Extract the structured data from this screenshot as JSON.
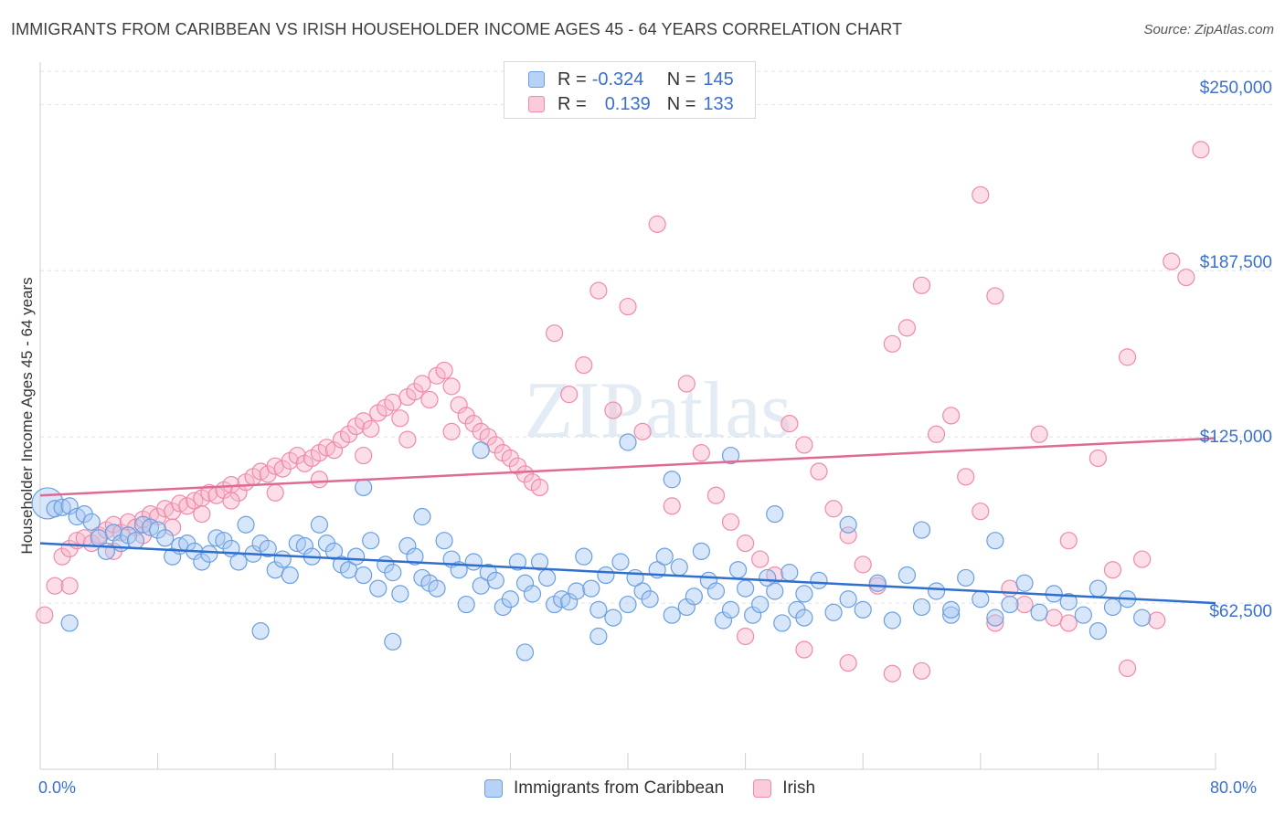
{
  "title": "IMMIGRANTS FROM CARIBBEAN VS IRISH HOUSEHOLDER INCOME AGES 45 - 64 YEARS CORRELATION CHART",
  "source": "Source: ZipAtlas.com",
  "watermark": "ZIPatlas",
  "legend_top": {
    "rows": [
      {
        "r_label": "R =",
        "r_value": "-0.324",
        "n_label": "N =",
        "n_value": "145"
      },
      {
        "r_label": "R =",
        "r_value": "0.139",
        "n_label": "N =",
        "n_value": "133"
      }
    ]
  },
  "chart_data": {
    "type": "scatter",
    "title": "IMMIGRANTS FROM CARIBBEAN VS IRISH HOUSEHOLDER INCOME AGES 45 - 64 YEARS CORRELATION CHART",
    "xlabel": "",
    "ylabel": "Householder Income Ages 45 - 64 years",
    "xlim": [
      0,
      80
    ],
    "ylim": [
      0,
      262500
    ],
    "x_tick_labels": [
      "0.0%",
      "80.0%"
    ],
    "y_ticks": [
      62500,
      125000,
      187500,
      250000
    ],
    "y_tick_labels": [
      "$62,500",
      "$125,000",
      "$187,500",
      "$250,000"
    ],
    "grid": true,
    "legend_position": "bottom",
    "colors": {
      "caribbean": "#6a9fe0",
      "irish": "#f08aaa",
      "caribbean_line": "#2f6fd0",
      "irish_line": "#e06a96"
    },
    "series": [
      {
        "name": "Immigrants from Caribbean",
        "r": -0.324,
        "n": 145,
        "trend": {
          "x": [
            0,
            80
          ],
          "y": [
            85000,
            62500
          ]
        },
        "points": [
          [
            0.5,
            100000
          ],
          [
            1,
            98000
          ],
          [
            1.5,
            98500
          ],
          [
            2,
            99000
          ],
          [
            2.5,
            95000
          ],
          [
            3,
            96000
          ],
          [
            3.5,
            93000
          ],
          [
            4,
            87000
          ],
          [
            4.5,
            82000
          ],
          [
            5,
            89000
          ],
          [
            5.5,
            85000
          ],
          [
            6,
            88000
          ],
          [
            6.5,
            86000
          ],
          [
            7,
            92000
          ],
          [
            7.5,
            91000
          ],
          [
            8,
            90000
          ],
          [
            8.5,
            87000
          ],
          [
            9,
            80000
          ],
          [
            9.5,
            84000
          ],
          [
            10,
            85000
          ],
          [
            10.5,
            82000
          ],
          [
            11,
            78000
          ],
          [
            11.5,
            81000
          ],
          [
            12,
            87000
          ],
          [
            12.5,
            86000
          ],
          [
            13,
            83000
          ],
          [
            13.5,
            78000
          ],
          [
            14,
            92000
          ],
          [
            14.5,
            81000
          ],
          [
            15,
            85000
          ],
          [
            15.5,
            83000
          ],
          [
            16,
            75000
          ],
          [
            16.5,
            79000
          ],
          [
            17,
            73000
          ],
          [
            17.5,
            85000
          ],
          [
            18,
            84000
          ],
          [
            18.5,
            80000
          ],
          [
            19,
            92000
          ],
          [
            19.5,
            85000
          ],
          [
            20,
            82000
          ],
          [
            20.5,
            77000
          ],
          [
            21,
            75000
          ],
          [
            21.5,
            80000
          ],
          [
            22,
            73000
          ],
          [
            22.5,
            86000
          ],
          [
            23,
            68000
          ],
          [
            23.5,
            77000
          ],
          [
            24,
            74000
          ],
          [
            24.5,
            66000
          ],
          [
            25,
            84000
          ],
          [
            25.5,
            80000
          ],
          [
            26,
            72000
          ],
          [
            26.5,
            70000
          ],
          [
            27,
            68000
          ],
          [
            27.5,
            86000
          ],
          [
            28,
            79000
          ],
          [
            28.5,
            75000
          ],
          [
            29,
            62000
          ],
          [
            29.5,
            78000
          ],
          [
            30,
            69000
          ],
          [
            30.5,
            74000
          ],
          [
            31,
            71000
          ],
          [
            31.5,
            61000
          ],
          [
            32,
            64000
          ],
          [
            32.5,
            78000
          ],
          [
            33,
            70000
          ],
          [
            33.5,
            66000
          ],
          [
            34,
            78000
          ],
          [
            34.5,
            72000
          ],
          [
            35,
            62000
          ],
          [
            35.5,
            64000
          ],
          [
            36,
            63000
          ],
          [
            36.5,
            67000
          ],
          [
            37,
            80000
          ],
          [
            37.5,
            68000
          ],
          [
            38,
            60000
          ],
          [
            38.5,
            73000
          ],
          [
            39,
            57000
          ],
          [
            39.5,
            78000
          ],
          [
            40,
            62000
          ],
          [
            40.5,
            72000
          ],
          [
            41,
            67000
          ],
          [
            41.5,
            64000
          ],
          [
            42,
            75000
          ],
          [
            42.5,
            80000
          ],
          [
            43,
            58000
          ],
          [
            43.5,
            76000
          ],
          [
            44,
            61000
          ],
          [
            44.5,
            65000
          ],
          [
            45,
            82000
          ],
          [
            45.5,
            71000
          ],
          [
            46,
            67000
          ],
          [
            46.5,
            56000
          ],
          [
            47,
            60000
          ],
          [
            47.5,
            75000
          ],
          [
            48,
            68000
          ],
          [
            48.5,
            58000
          ],
          [
            49,
            62000
          ],
          [
            49.5,
            72000
          ],
          [
            50,
            67000
          ],
          [
            50.5,
            55000
          ],
          [
            51,
            74000
          ],
          [
            51.5,
            60000
          ],
          [
            52,
            66000
          ],
          [
            53,
            71000
          ],
          [
            54,
            59000
          ],
          [
            55,
            64000
          ],
          [
            56,
            60000
          ],
          [
            57,
            70000
          ],
          [
            58,
            56000
          ],
          [
            59,
            73000
          ],
          [
            60,
            61000
          ],
          [
            61,
            67000
          ],
          [
            62,
            58000
          ],
          [
            63,
            72000
          ],
          [
            64,
            64000
          ],
          [
            65,
            57000
          ],
          [
            66,
            62000
          ],
          [
            67,
            70000
          ],
          [
            68,
            59000
          ],
          [
            69,
            66000
          ],
          [
            70,
            63000
          ],
          [
            71,
            58000
          ],
          [
            72,
            68000
          ],
          [
            73,
            61000
          ],
          [
            74,
            64000
          ],
          [
            75,
            57000
          ],
          [
            22,
            106000
          ],
          [
            26,
            95000
          ],
          [
            30,
            120000
          ],
          [
            40,
            123000
          ],
          [
            43,
            109000
          ],
          [
            47,
            118000
          ],
          [
            50,
            96000
          ],
          [
            55,
            92000
          ],
          [
            60,
            90000
          ],
          [
            65,
            86000
          ],
          [
            2,
            55000
          ],
          [
            15,
            52000
          ],
          [
            24,
            48000
          ],
          [
            33,
            44000
          ],
          [
            38,
            50000
          ],
          [
            52,
            57000
          ],
          [
            62,
            60000
          ],
          [
            72,
            52000
          ]
        ]
      },
      {
        "name": "Irish",
        "r": 0.139,
        "n": 133,
        "trend": {
          "x": [
            0,
            80
          ],
          "y": [
            103000,
            124500
          ]
        },
        "points": [
          [
            0.3,
            58000
          ],
          [
            1,
            69000
          ],
          [
            1.5,
            80000
          ],
          [
            2,
            83000
          ],
          [
            2.5,
            86000
          ],
          [
            3,
            87000
          ],
          [
            3.5,
            85000
          ],
          [
            4,
            88000
          ],
          [
            4.5,
            90000
          ],
          [
            5,
            92000
          ],
          [
            5.5,
            89000
          ],
          [
            6,
            93000
          ],
          [
            6.5,
            91000
          ],
          [
            7,
            94000
          ],
          [
            7.5,
            96000
          ],
          [
            8,
            95000
          ],
          [
            8.5,
            98000
          ],
          [
            9,
            97000
          ],
          [
            9.5,
            100000
          ],
          [
            10,
            99000
          ],
          [
            10.5,
            101000
          ],
          [
            11,
            102000
          ],
          [
            11.5,
            104000
          ],
          [
            12,
            103000
          ],
          [
            12.5,
            105000
          ],
          [
            13,
            107000
          ],
          [
            13.5,
            104000
          ],
          [
            14,
            108000
          ],
          [
            14.5,
            110000
          ],
          [
            15,
            112000
          ],
          [
            15.5,
            111000
          ],
          [
            16,
            114000
          ],
          [
            16.5,
            113000
          ],
          [
            17,
            116000
          ],
          [
            17.5,
            118000
          ],
          [
            18,
            115000
          ],
          [
            18.5,
            117000
          ],
          [
            19,
            119000
          ],
          [
            19.5,
            121000
          ],
          [
            20,
            120000
          ],
          [
            20.5,
            124000
          ],
          [
            21,
            126000
          ],
          [
            21.5,
            129000
          ],
          [
            22,
            131000
          ],
          [
            22.5,
            128000
          ],
          [
            23,
            134000
          ],
          [
            23.5,
            136000
          ],
          [
            24,
            138000
          ],
          [
            24.5,
            132000
          ],
          [
            25,
            140000
          ],
          [
            25.5,
            142000
          ],
          [
            26,
            145000
          ],
          [
            26.5,
            139000
          ],
          [
            27,
            148000
          ],
          [
            27.5,
            150000
          ],
          [
            28,
            144000
          ],
          [
            28.5,
            137000
          ],
          [
            29,
            133000
          ],
          [
            29.5,
            130000
          ],
          [
            30,
            127000
          ],
          [
            30.5,
            125000
          ],
          [
            31,
            122000
          ],
          [
            31.5,
            119000
          ],
          [
            32,
            117000
          ],
          [
            32.5,
            114000
          ],
          [
            33,
            111000
          ],
          [
            33.5,
            108000
          ],
          [
            34,
            106000
          ],
          [
            35,
            164000
          ],
          [
            36,
            141000
          ],
          [
            37,
            152000
          ],
          [
            38,
            180000
          ],
          [
            39,
            135000
          ],
          [
            40,
            174000
          ],
          [
            41,
            127000
          ],
          [
            42,
            205000
          ],
          [
            43,
            99000
          ],
          [
            44,
            145000
          ],
          [
            45,
            119000
          ],
          [
            46,
            103000
          ],
          [
            47,
            93000
          ],
          [
            48,
            85000
          ],
          [
            49,
            79000
          ],
          [
            50,
            73000
          ],
          [
            51,
            130000
          ],
          [
            52,
            122000
          ],
          [
            53,
            112000
          ],
          [
            54,
            98000
          ],
          [
            55,
            88000
          ],
          [
            56,
            77000
          ],
          [
            57,
            69000
          ],
          [
            58,
            160000
          ],
          [
            59,
            166000
          ],
          [
            60,
            182000
          ],
          [
            61,
            126000
          ],
          [
            62,
            133000
          ],
          [
            63,
            110000
          ],
          [
            64,
            97000
          ],
          [
            65,
            178000
          ],
          [
            66,
            68000
          ],
          [
            67,
            62000
          ],
          [
            68,
            126000
          ],
          [
            69,
            57000
          ],
          [
            70,
            86000
          ],
          [
            72,
            117000
          ],
          [
            73,
            75000
          ],
          [
            74,
            155000
          ],
          [
            75,
            79000
          ],
          [
            76,
            56000
          ],
          [
            77,
            191000
          ],
          [
            78,
            185000
          ],
          [
            79,
            233000
          ],
          [
            64,
            216000
          ],
          [
            55,
            40000
          ],
          [
            58,
            36000
          ],
          [
            60,
            37000
          ],
          [
            65,
            55000
          ],
          [
            70,
            55000
          ],
          [
            74,
            38000
          ],
          [
            48,
            50000
          ],
          [
            52,
            45000
          ],
          [
            2,
            69000
          ],
          [
            5,
            82000
          ],
          [
            7,
            88000
          ],
          [
            9,
            91000
          ],
          [
            11,
            96000
          ],
          [
            13,
            101000
          ],
          [
            16,
            104000
          ],
          [
            19,
            109000
          ],
          [
            22,
            118000
          ],
          [
            25,
            124000
          ],
          [
            28,
            127000
          ]
        ]
      }
    ]
  },
  "legend_bottom": {
    "items": [
      {
        "label": "Immigrants from Caribbean"
      },
      {
        "label": "Irish"
      }
    ]
  }
}
